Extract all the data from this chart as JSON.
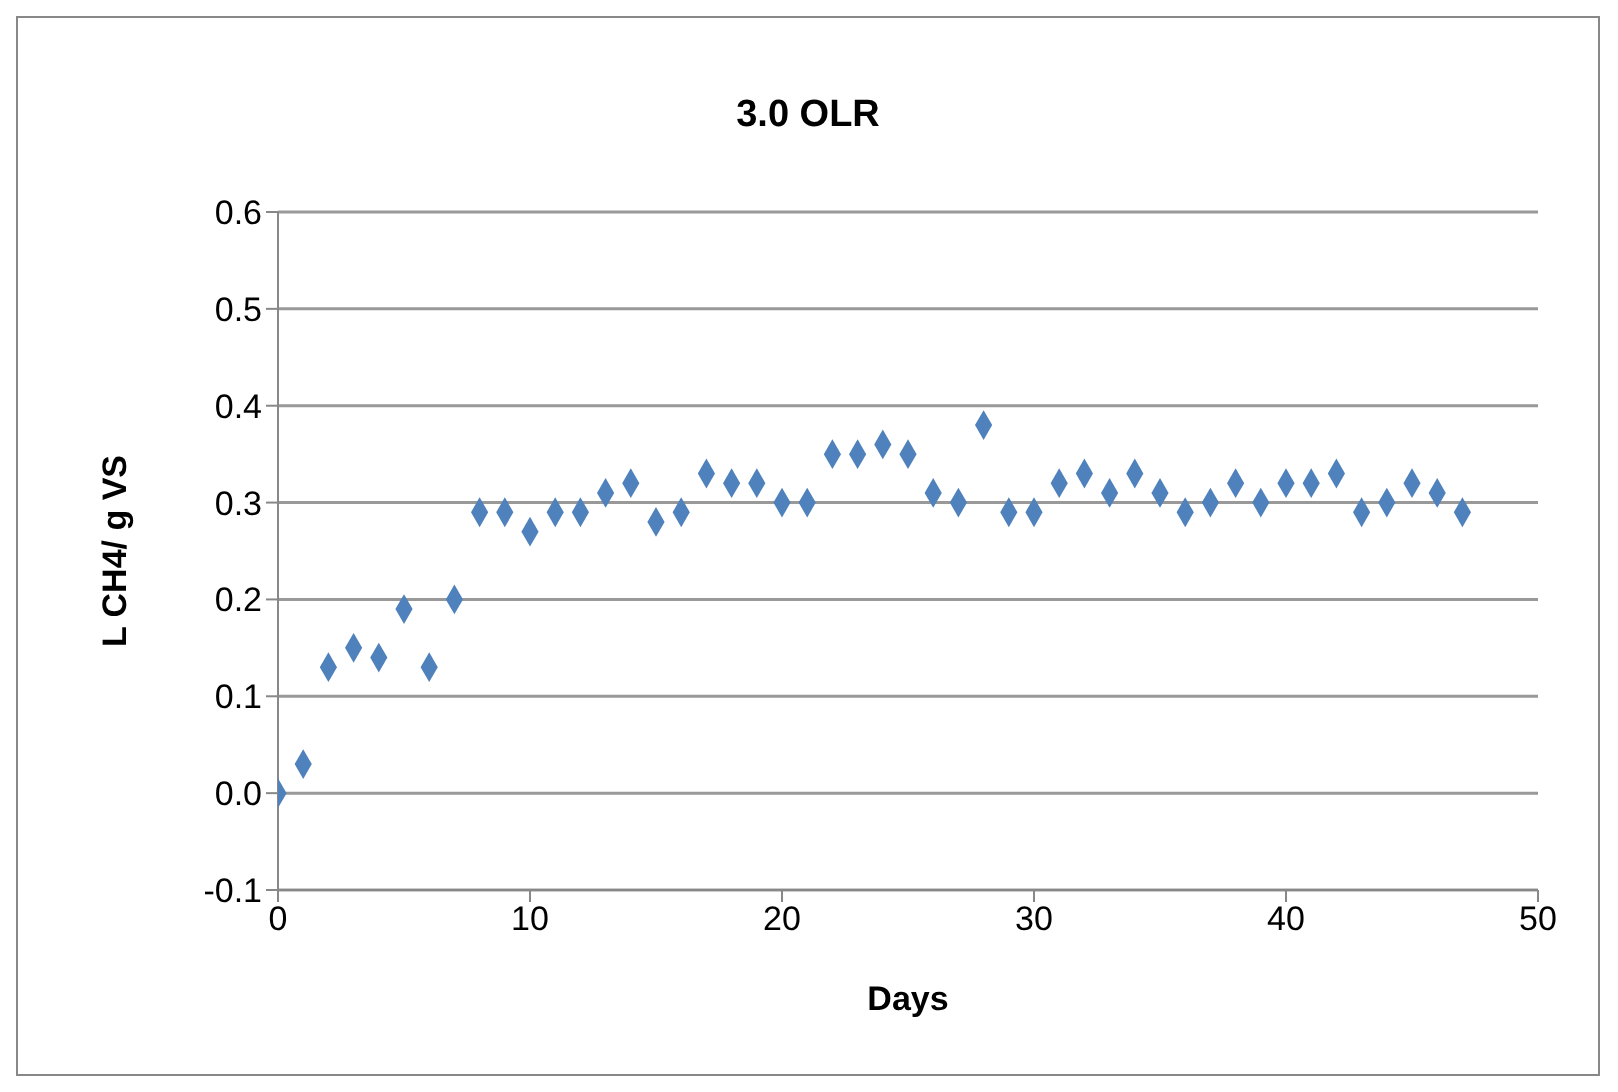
{
  "chart_data": {
    "type": "scatter",
    "title": "3.0 OLR",
    "xlabel": "Days",
    "ylabel": "L CH4/ g VS",
    "x": [
      0,
      1,
      2,
      3,
      4,
      5,
      6,
      7,
      8,
      9,
      10,
      11,
      12,
      13,
      14,
      15,
      16,
      17,
      18,
      19,
      20,
      21,
      22,
      23,
      24,
      25,
      26,
      27,
      28,
      29,
      30,
      31,
      32,
      33,
      34,
      35,
      36,
      37,
      38,
      39,
      40,
      41,
      42,
      43,
      44,
      45,
      46,
      47
    ],
    "series": [
      {
        "color": "#4f81bd",
        "values": [
          0.0,
          0.03,
          0.13,
          0.15,
          0.14,
          0.19,
          0.13,
          0.2,
          0.29,
          0.29,
          0.27,
          0.29,
          0.29,
          0.31,
          0.32,
          0.28,
          0.29,
          0.33,
          0.32,
          0.32,
          0.3,
          0.3,
          0.35,
          0.35,
          0.36,
          0.35,
          0.31,
          0.3,
          0.38,
          0.29,
          0.29,
          0.32,
          0.33,
          0.31,
          0.33,
          0.31,
          0.29,
          0.3,
          0.32,
          0.3,
          0.32,
          0.32,
          0.33,
          0.29,
          0.3,
          0.32,
          0.31,
          0.29
        ]
      }
    ],
    "xlim": [
      0,
      50
    ],
    "xticks": [
      0,
      10,
      20,
      30,
      40,
      50
    ],
    "ylim": [
      -0.1,
      0.6
    ],
    "yticks": [
      {
        "value": -0.1,
        "label": "-0.1"
      },
      {
        "value": 0,
        "label": "0.0"
      },
      {
        "value": 0.1,
        "label": "0.1"
      },
      {
        "value": 0.2,
        "label": "0.2"
      },
      {
        "value": 0.3,
        "label": "0.3"
      },
      {
        "value": 0.4,
        "label": "0.4"
      },
      {
        "value": 0.5,
        "label": "0.5"
      },
      {
        "value": 0.6,
        "label": "0.6"
      }
    ],
    "grid": "y",
    "marker": "diamond",
    "legend": false
  }
}
